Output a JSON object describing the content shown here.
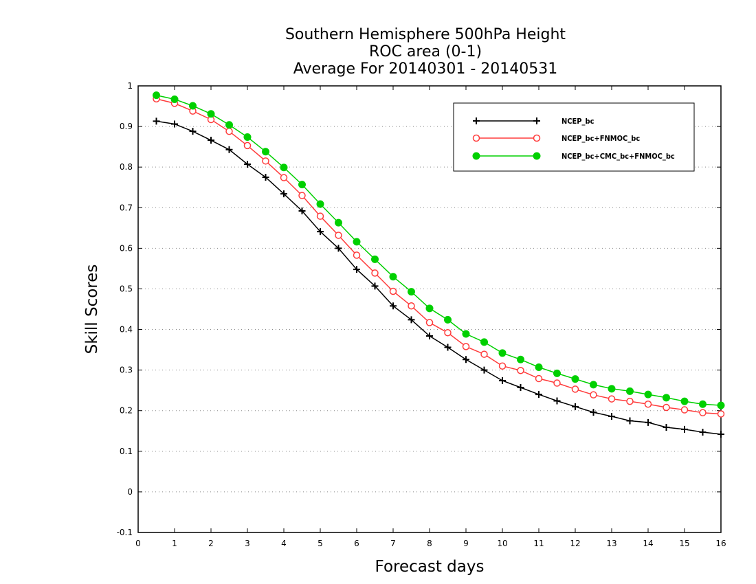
{
  "chart_data": {
    "type": "line",
    "title_lines": [
      "Southern Hemisphere 500hPa Height",
      "ROC area (0-1)",
      "Average For 20140301 - 20140531"
    ],
    "xlabel": "Forecast days",
    "ylabel": "Skill Scores",
    "xlim": [
      0,
      16
    ],
    "ylim": [
      -0.1,
      1
    ],
    "xticks": [
      "0",
      "1",
      "2",
      "3",
      "4",
      "5",
      "6",
      "7",
      "8",
      "9",
      "10",
      "11",
      "12",
      "13",
      "14",
      "15",
      "16"
    ],
    "yticks": [
      "-0.1",
      "0",
      "0.1",
      "0.2",
      "0.3",
      "0.4",
      "0.5",
      "0.6",
      "0.7",
      "0.8",
      "0.9",
      "1"
    ],
    "grid": "horizontal-dotted",
    "legend_position": "top-right",
    "x": [
      0.5,
      1,
      1.5,
      2,
      2.5,
      3,
      3.5,
      4,
      4.5,
      5,
      5.5,
      6,
      6.5,
      7,
      7.5,
      8,
      8.5,
      9,
      9.5,
      10,
      10.5,
      11,
      11.5,
      12,
      12.5,
      13,
      13.5,
      14,
      14.5,
      15,
      15.5,
      16
    ],
    "series": [
      {
        "name": "NCEP_bc",
        "color": "#000000",
        "marker": "plus",
        "values": [
          0.913,
          0.906,
          0.888,
          0.866,
          0.843,
          0.807,
          0.775,
          0.734,
          0.692,
          0.641,
          0.6,
          0.548,
          0.507,
          0.458,
          0.424,
          0.384,
          0.356,
          0.326,
          0.3,
          0.274,
          0.257,
          0.24,
          0.224,
          0.21,
          0.196,
          0.186,
          0.175,
          0.171,
          0.159,
          0.154,
          0.147,
          0.142
        ]
      },
      {
        "name": "NCEP_bc+FNMOC_bc",
        "color": "#ff3b3b",
        "marker": "open-circle",
        "values": [
          0.968,
          0.957,
          0.938,
          0.917,
          0.888,
          0.853,
          0.815,
          0.774,
          0.73,
          0.679,
          0.632,
          0.583,
          0.539,
          0.494,
          0.458,
          0.417,
          0.392,
          0.358,
          0.339,
          0.31,
          0.299,
          0.279,
          0.268,
          0.253,
          0.239,
          0.229,
          0.223,
          0.216,
          0.208,
          0.202,
          0.195,
          0.192
        ]
      },
      {
        "name": "NCEP_bc+CMC_bc+FNMOC_bc",
        "color": "#00d000",
        "marker": "filled-circle",
        "values": [
          0.977,
          0.967,
          0.951,
          0.931,
          0.904,
          0.874,
          0.838,
          0.799,
          0.757,
          0.709,
          0.663,
          0.616,
          0.573,
          0.53,
          0.493,
          0.452,
          0.424,
          0.389,
          0.369,
          0.342,
          0.326,
          0.307,
          0.292,
          0.278,
          0.264,
          0.254,
          0.248,
          0.24,
          0.232,
          0.223,
          0.216,
          0.213
        ]
      }
    ]
  }
}
